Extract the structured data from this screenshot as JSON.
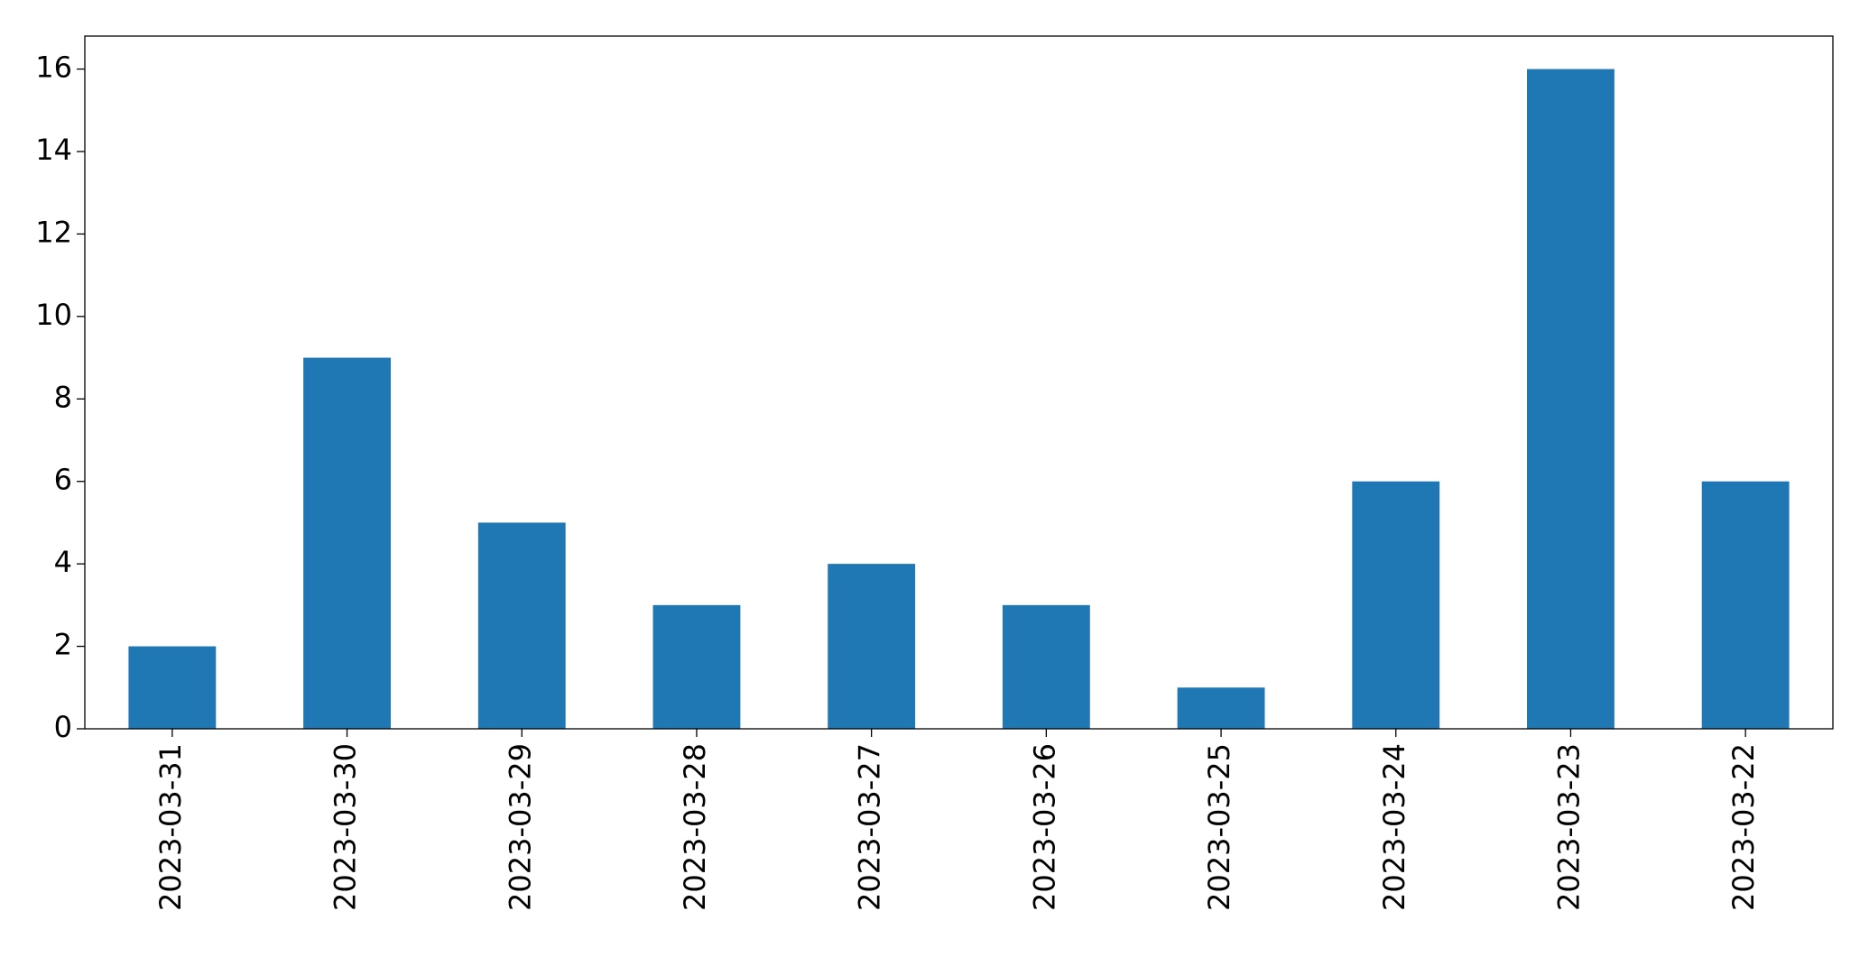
{
  "chart_data": {
    "type": "bar",
    "categories": [
      "2023-03-31",
      "2023-03-30",
      "2023-03-29",
      "2023-03-28",
      "2023-03-27",
      "2023-03-26",
      "2023-03-25",
      "2023-03-24",
      "2023-03-23",
      "2023-03-22"
    ],
    "values": [
      2,
      9,
      5,
      3,
      4,
      3,
      1,
      6,
      16,
      6
    ],
    "color": "#1f77b4",
    "ylim": [
      0,
      16.8
    ],
    "yticks": [
      0,
      2,
      4,
      6,
      8,
      10,
      12,
      14,
      16
    ]
  }
}
